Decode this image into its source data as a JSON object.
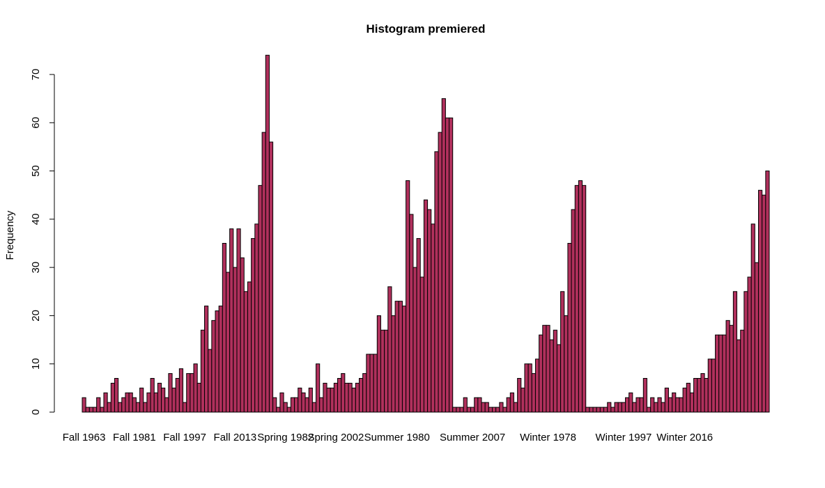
{
  "chart_data": {
    "type": "bar",
    "title": "Histogram premiered",
    "xlabel": "",
    "ylabel": "Frequency",
    "ylim": [
      0,
      70
    ],
    "yticks": [
      0,
      10,
      20,
      30,
      40,
      50,
      60,
      70
    ],
    "grid": false,
    "legend": "none",
    "bar_color": "#B0305C",
    "x_tick_labels": [
      "Fall 1963",
      "Fall 1981",
      "Fall 1997",
      "Fall 2013",
      "Spring 1982",
      "Spring 2002",
      "Summer 1980",
      "Summer 2007",
      "Winter 1978",
      "Winter 1997",
      "Winter 2016"
    ],
    "x_tick_bar_index": [
      0,
      14,
      28,
      42,
      56,
      70,
      87,
      108,
      129,
      150,
      167
    ],
    "values": [
      3,
      1,
      1,
      1,
      3,
      1,
      4,
      2,
      6,
      7,
      2,
      3,
      4,
      4,
      3,
      2,
      5,
      2,
      4,
      7,
      4,
      6,
      5,
      3,
      8,
      5,
      7,
      9,
      2,
      8,
      8,
      10,
      6,
      17,
      22,
      13,
      19,
      21,
      22,
      35,
      29,
      38,
      30,
      38,
      32,
      25,
      27,
      36,
      39,
      47,
      58,
      74,
      56,
      3,
      1,
      4,
      2,
      1,
      3,
      3,
      5,
      4,
      3,
      5,
      2,
      10,
      3,
      6,
      5,
      5,
      6,
      7,
      8,
      6,
      6,
      5,
      6,
      7,
      8,
      12,
      12,
      12,
      20,
      17,
      17,
      26,
      20,
      23,
      23,
      22,
      48,
      41,
      30,
      36,
      28,
      44,
      42,
      39,
      54,
      58,
      65,
      61,
      61,
      1,
      1,
      1,
      3,
      1,
      1,
      3,
      3,
      2,
      2,
      1,
      1,
      1,
      2,
      1,
      3,
      4,
      2,
      7,
      5,
      10,
      10,
      8,
      11,
      16,
      18,
      18,
      15,
      17,
      14,
      25,
      20,
      35,
      42,
      47,
      48,
      47,
      1,
      1,
      1,
      1,
      1,
      1,
      2,
      1,
      2,
      2,
      2,
      3,
      4,
      2,
      3,
      3,
      7,
      1,
      3,
      2,
      3,
      2,
      5,
      3,
      4,
      3,
      3,
      5,
      6,
      4,
      7,
      7,
      8,
      7,
      11,
      11,
      16,
      16,
      16,
      19,
      18,
      25,
      15,
      17,
      25,
      28,
      39,
      31,
      46,
      45,
      50
    ]
  }
}
